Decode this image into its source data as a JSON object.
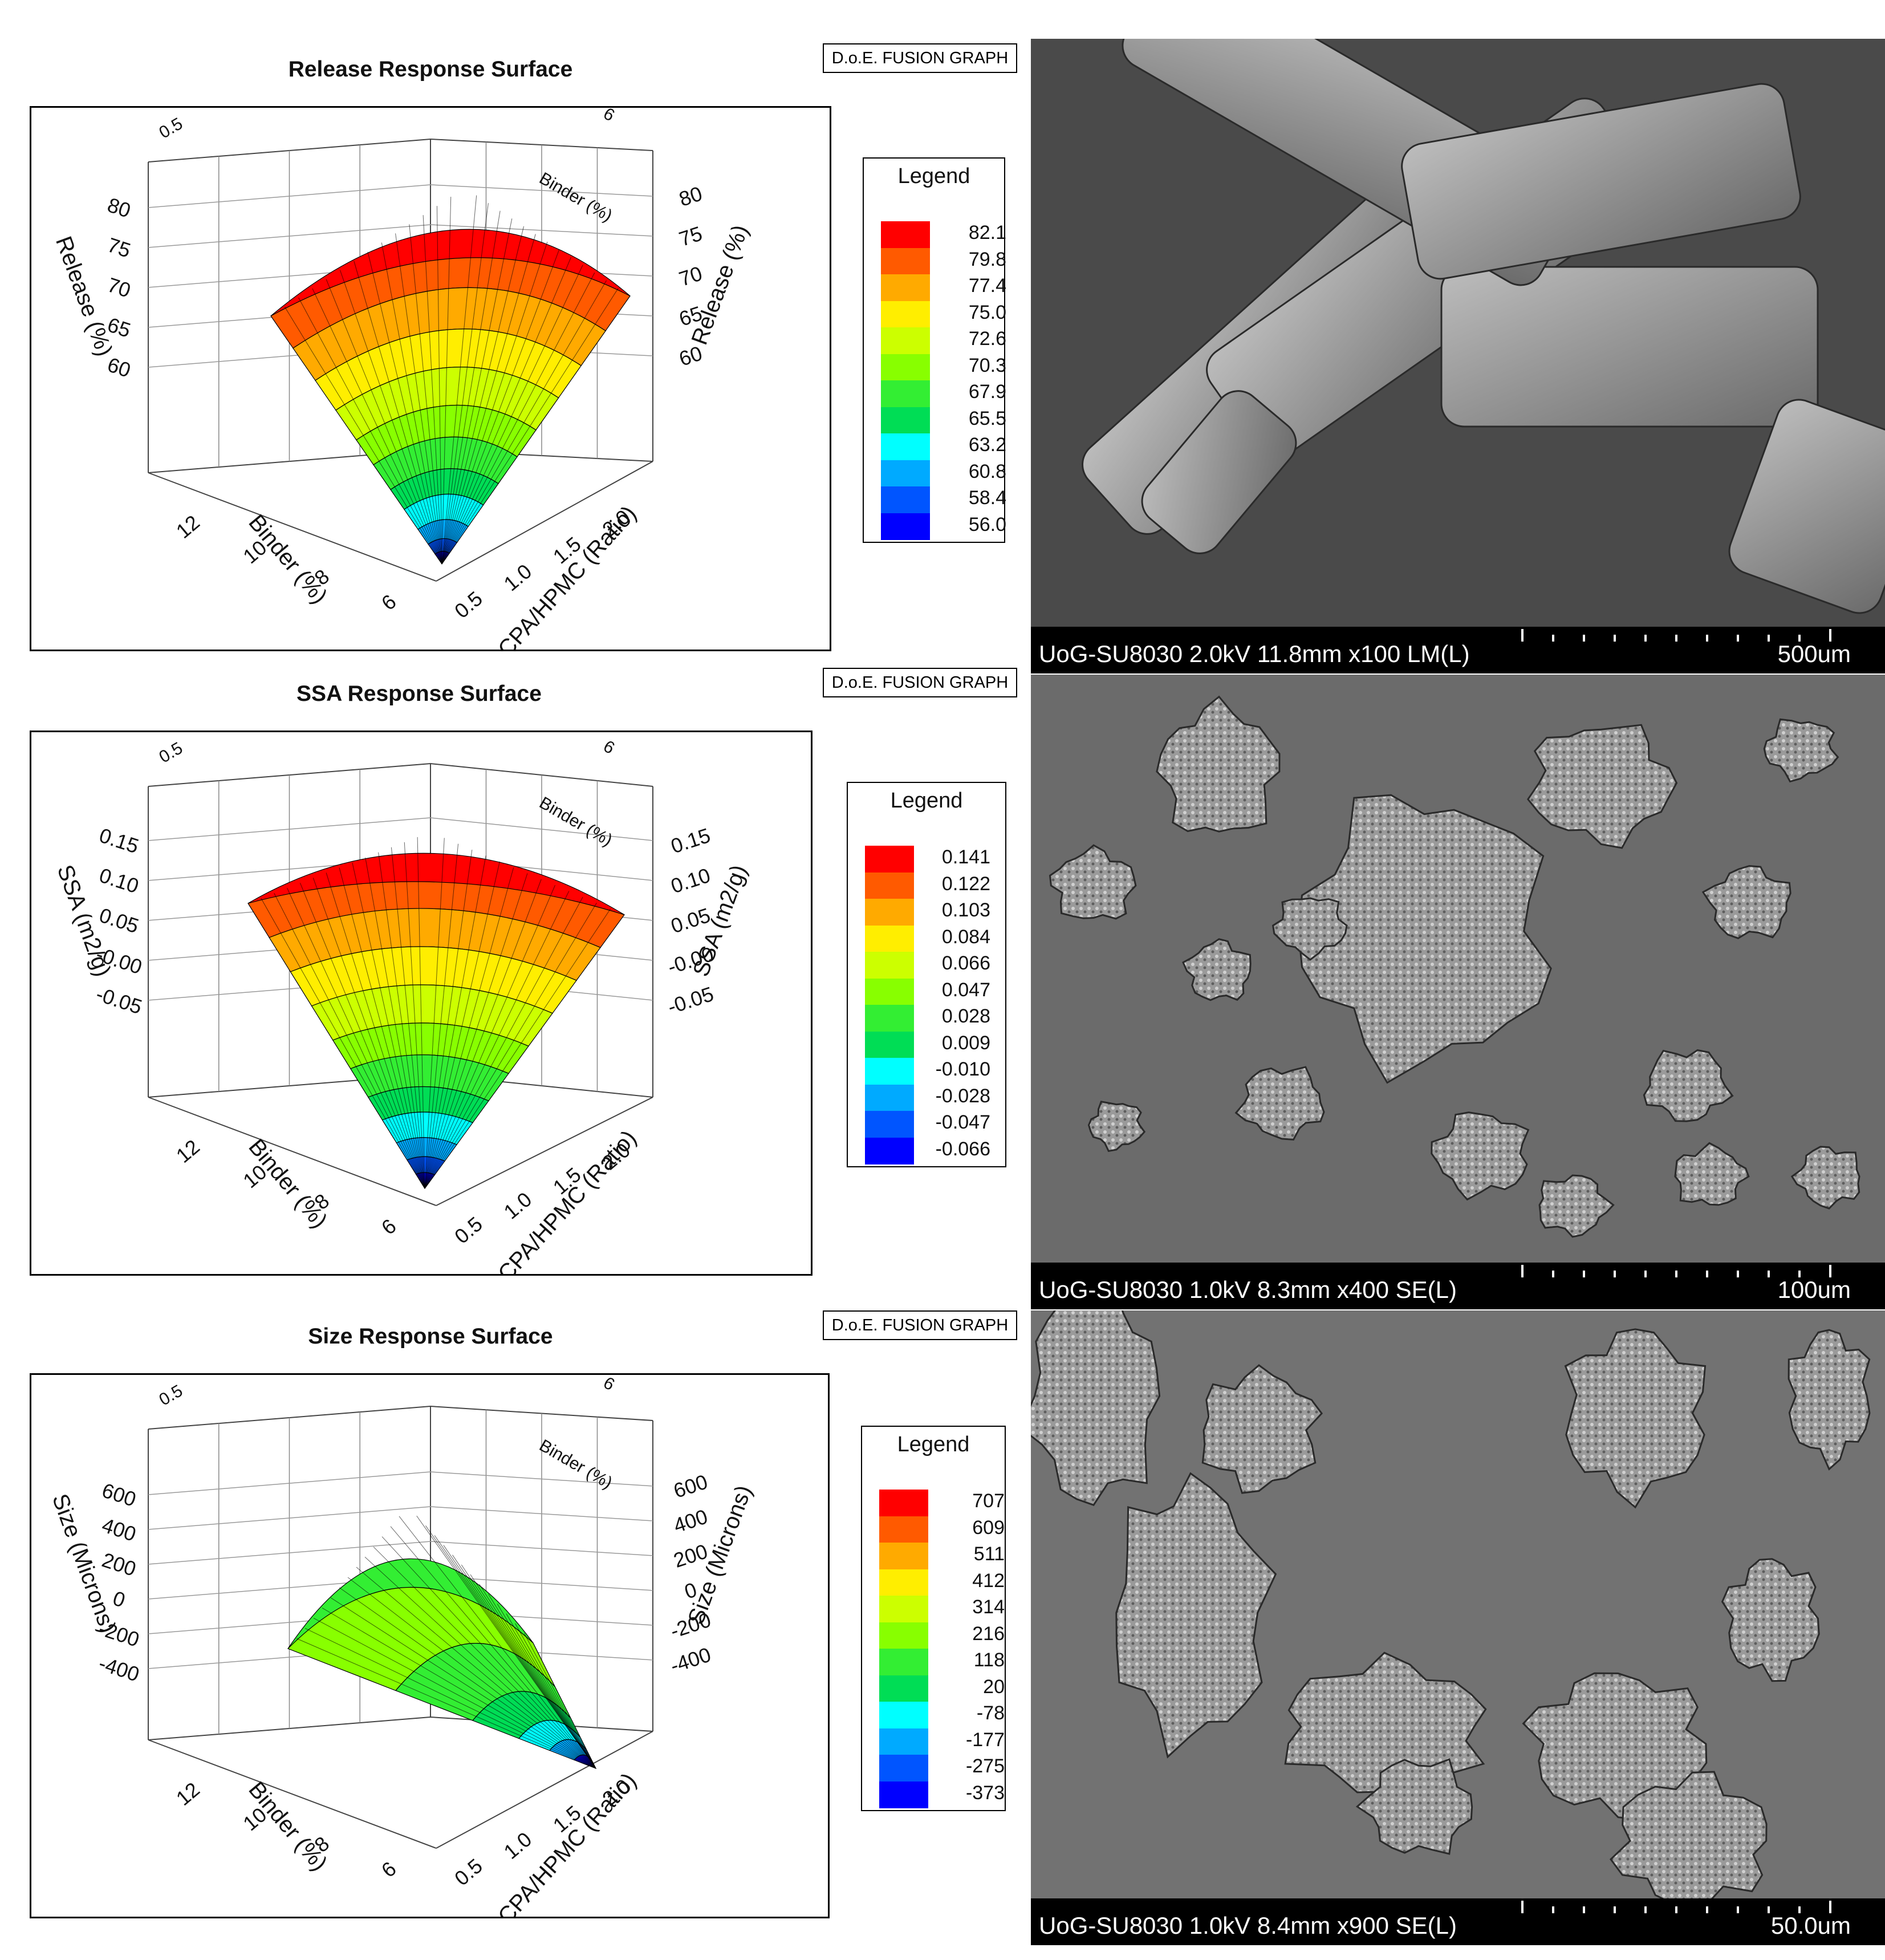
{
  "chart_data": [
    {
      "type": "surface",
      "title": "Release Response Surface",
      "badge": "D.o.E. FUSION GRAPH",
      "axes": {
        "ratio_label": "DCPA/HPMC (Ratio)",
        "binder_label": "Binder (%)",
        "z_label": "Release (%)",
        "ratio_ticks": [
          "0.5",
          "1.0",
          "1.5",
          "2.0"
        ],
        "binder_ticks": [
          "6",
          "8",
          "10",
          "12"
        ],
        "z_ticks": [
          "60",
          "65",
          "70",
          "75",
          "80"
        ]
      },
      "legend_title": "Legend",
      "legend": [
        "82.1",
        "79.8",
        "77.4",
        "75.0",
        "72.6",
        "70.3",
        "67.9",
        "65.5",
        "63.2",
        "60.8",
        "58.4",
        "56.0"
      ]
    },
    {
      "type": "surface",
      "title": "SSA Response Surface",
      "badge": "D.o.E. FUSION GRAPH",
      "axes": {
        "ratio_label": "DCPA/HPMC (Ratio)",
        "binder_label": "Binder (%)",
        "z_label": "SSA (m2/g)",
        "ratio_ticks": [
          "0.5",
          "1.0",
          "1.5",
          "2.0"
        ],
        "binder_ticks": [
          "6",
          "8",
          "10",
          "12"
        ],
        "z_ticks": [
          "-0.05",
          "-0.00",
          "0.05",
          "0.10",
          "0.15"
        ]
      },
      "legend_title": "Legend",
      "legend": [
        "0.141",
        "0.122",
        "0.103",
        "0.084",
        "0.066",
        "0.047",
        "0.028",
        "0.009",
        "-0.010",
        "-0.028",
        "-0.047",
        "-0.066"
      ]
    },
    {
      "type": "surface",
      "title": "Size Response Surface",
      "badge": "D.o.E. FUSION GRAPH",
      "axes": {
        "ratio_label": "DCPA/HPMC (Ratio)",
        "binder_label": "Binder (%)",
        "z_label": "Size (Microns)",
        "ratio_ticks": [
          "0.5",
          "1.0",
          "1.5",
          "2.0"
        ],
        "binder_ticks": [
          "6",
          "8",
          "10",
          "12"
        ],
        "z_ticks": [
          "-400",
          "-200",
          "0",
          "200",
          "400",
          "600"
        ]
      },
      "legend_title": "Legend",
      "legend": [
        "707",
        "609",
        "511",
        "412",
        "314",
        "216",
        "118",
        "20",
        "-78",
        "-177",
        "-275",
        "-373"
      ]
    }
  ],
  "legend_colors": [
    "#ff0000",
    "#ff5a00",
    "#ffaa00",
    "#ffee00",
    "#ccff00",
    "#88ff00",
    "#33ee33",
    "#00dd55",
    "#00ffff",
    "#00aaff",
    "#0055ff",
    "#0000ff"
  ],
  "micrographs": [
    {
      "info": "UoG-SU8030 2.0kV 11.8mm x100 LM(L)",
      "scale": "500um"
    },
    {
      "info": "UoG-SU8030 1.0kV 8.3mm x400 SE(L)",
      "scale": "100um"
    },
    {
      "info": "UoG-SU8030 1.0kV 8.4mm x900 SE(L)",
      "scale": "50.0um"
    }
  ]
}
